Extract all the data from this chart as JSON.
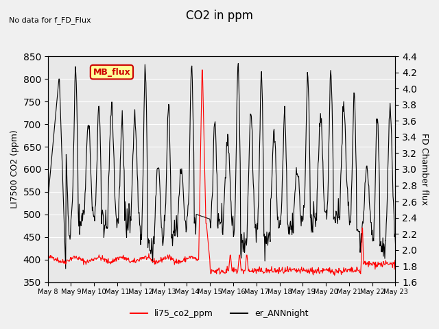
{
  "title": "CO2 in ppm",
  "top_left_text": "No data for f_FD_Flux",
  "ylabel_left": "LI7500 CO2 (ppm)",
  "ylabel_right": "FD Chamber flux",
  "ylim_left": [
    350,
    850
  ],
  "ylim_right": [
    1.6,
    4.4
  ],
  "yticks_left": [
    350,
    400,
    450,
    500,
    550,
    600,
    650,
    700,
    750,
    800,
    850
  ],
  "yticks_right": [
    1.6,
    1.8,
    2.0,
    2.2,
    2.4,
    2.6,
    2.8,
    3.0,
    3.2,
    3.4,
    3.6,
    3.8,
    4.0,
    4.2,
    4.4
  ],
  "xtick_labels": [
    "May 8",
    "May 9",
    "May 10",
    "May 11",
    "May 12",
    "May 13",
    "May 14",
    "May 15",
    "May 16",
    "May 17",
    "May 18",
    "May 19",
    "May 20",
    "May 21",
    "May 22",
    "May 23"
  ],
  "legend_labels": [
    "li75_co2_ppm",
    "er_ANNnight"
  ],
  "legend_colors": [
    "#ff0000",
    "#000000"
  ],
  "line1_color": "#ff0000",
  "line2_color": "#000000",
  "background_color": "#e8e8e8",
  "annotation_box_text": "MB_flux",
  "annotation_box_color": "#ffff99",
  "annotation_box_edge": "#cc0000",
  "annotation_text_color": "#cc0000"
}
